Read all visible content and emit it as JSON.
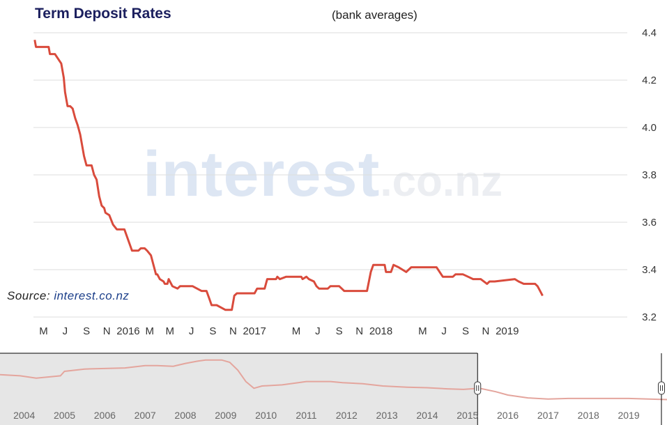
{
  "header": {
    "title": "Term Deposit Rates",
    "subtitle": "(bank averages)"
  },
  "source": {
    "prefix": "Source:",
    "link": "interest.co.nz"
  },
  "watermark": {
    "main": "interest",
    "tail": ".co.nz"
  },
  "colors": {
    "series": "#d94b3c",
    "navigator_series": "#e4a59d",
    "navigator_mask": "#e6e6e6",
    "grid": "#dddddd",
    "title": "#1b1f5e"
  },
  "chart_data": {
    "type": "line",
    "title": "Term Deposit Rates",
    "subtitle": "(bank averages)",
    "ylim": [
      3.2,
      4.4
    ],
    "yticks": [
      3.2,
      3.4,
      3.6,
      3.8,
      4.0,
      4.2,
      4.4
    ],
    "ytick_labels": [
      "3.2",
      "3.4",
      "3.6",
      "3.8",
      "4.0",
      "4.2",
      "4.4"
    ],
    "y_axis_side": "right",
    "grid": true,
    "xlim": [
      2015.25,
      2019.95
    ],
    "xticks": [
      2015.33,
      2015.5,
      2015.67,
      2015.83,
      2016.0,
      2016.17,
      2016.33,
      2016.5,
      2016.67,
      2016.83,
      2017.0,
      2017.33,
      2017.5,
      2017.67,
      2017.83,
      2018.0,
      2018.33,
      2018.5,
      2018.67,
      2018.83,
      2019.0
    ],
    "xtick_labels": [
      "M",
      "J",
      "S",
      "N",
      "2016",
      "M",
      "M",
      "J",
      "S",
      "N",
      "2017",
      "M",
      "J",
      "S",
      "N",
      "2018",
      "M",
      "J",
      "S",
      "N",
      "2019"
    ],
    "series": [
      {
        "x": [
          2015.26,
          2015.27,
          2015.3,
          2015.37,
          2015.38,
          2015.42,
          2015.47,
          2015.49,
          2015.5,
          2015.52,
          2015.54,
          2015.56,
          2015.58,
          2015.6,
          2015.62,
          2015.65,
          2015.67,
          2015.69,
          2015.71,
          2015.73,
          2015.75,
          2015.77,
          2015.79,
          2015.81,
          2015.82,
          2015.85,
          2015.88,
          2015.91,
          2015.97,
          2016.03,
          2016.05,
          2016.08,
          2016.1,
          2016.11,
          2016.13,
          2016.15,
          2016.18,
          2016.2,
          2016.22,
          2016.23,
          2016.25,
          2016.28,
          2016.29,
          2016.31,
          2016.32,
          2016.35,
          2016.39,
          2016.41,
          2016.51,
          2016.58,
          2016.62,
          2016.64,
          2016.66,
          2016.7,
          2016.77,
          2016.82,
          2016.84,
          2016.86,
          2016.89,
          2017.0,
          2017.02,
          2017.08,
          2017.1,
          2017.15,
          2017.17,
          2017.18,
          2017.2,
          2017.25,
          2017.37,
          2017.38,
          2017.41,
          2017.43,
          2017.47,
          2017.49,
          2017.51,
          2017.58,
          2017.6,
          2017.67,
          2017.69,
          2017.71,
          2017.75,
          2017.89,
          2017.92,
          2017.94,
          2017.99,
          2018.03,
          2018.04,
          2018.08,
          2018.1,
          2018.14,
          2018.2,
          2018.24,
          2018.3,
          2018.39,
          2018.41,
          2018.44,
          2018.49,
          2018.57,
          2018.59,
          2018.65,
          2018.69,
          2018.73,
          2018.79,
          2018.84,
          2018.86,
          2018.9,
          2019.06,
          2019.09,
          2019.13,
          2019.22,
          2019.24,
          2019.26,
          2019.28
        ],
        "y": [
          4.37,
          4.34,
          4.34,
          4.34,
          4.31,
          4.31,
          4.27,
          4.21,
          4.15,
          4.09,
          4.09,
          4.08,
          4.04,
          4.01,
          3.97,
          3.88,
          3.84,
          3.84,
          3.84,
          3.8,
          3.78,
          3.71,
          3.67,
          3.66,
          3.64,
          3.63,
          3.59,
          3.57,
          3.57,
          3.48,
          3.48,
          3.48,
          3.49,
          3.49,
          3.49,
          3.48,
          3.46,
          3.42,
          3.38,
          3.38,
          3.36,
          3.35,
          3.34,
          3.34,
          3.36,
          3.33,
          3.32,
          3.33,
          3.33,
          3.31,
          3.31,
          3.28,
          3.25,
          3.25,
          3.23,
          3.23,
          3.29,
          3.3,
          3.3,
          3.3,
          3.32,
          3.32,
          3.36,
          3.36,
          3.36,
          3.37,
          3.36,
          3.37,
          3.37,
          3.36,
          3.37,
          3.36,
          3.35,
          3.33,
          3.32,
          3.32,
          3.33,
          3.33,
          3.32,
          3.31,
          3.31,
          3.31,
          3.39,
          3.42,
          3.42,
          3.42,
          3.39,
          3.39,
          3.42,
          3.41,
          3.39,
          3.41,
          3.41,
          3.41,
          3.41,
          3.41,
          3.37,
          3.37,
          3.38,
          3.38,
          3.37,
          3.36,
          3.36,
          3.34,
          3.35,
          3.35,
          3.36,
          3.35,
          3.34,
          3.34,
          3.33,
          3.31,
          3.29
        ]
      }
    ],
    "navigator": {
      "xlim": [
        2003.4,
        2019.95
      ],
      "xticks": [
        2004,
        2005,
        2006,
        2007,
        2008,
        2009,
        2010,
        2011,
        2012,
        2013,
        2014,
        2015,
        2016,
        2017,
        2018,
        2019
      ],
      "xtick_labels": [
        "2004",
        "2005",
        "2006",
        "2007",
        "2008",
        "2009",
        "2010",
        "2011",
        "2012",
        "2013",
        "2014",
        "2015",
        "2016",
        "2017",
        "2018",
        "2019"
      ],
      "ylim": [
        3.0,
        7.5
      ],
      "selection": [
        2015.25,
        2019.95
      ],
      "x": [
        2003.4,
        2003.9,
        2004.3,
        2004.9,
        2005.0,
        2005.5,
        2006.0,
        2006.5,
        2007.0,
        2007.3,
        2007.7,
        2008.0,
        2008.3,
        2008.5,
        2008.9,
        2009.1,
        2009.3,
        2009.5,
        2009.7,
        2009.9,
        2010.4,
        2010.8,
        2011.0,
        2011.6,
        2011.9,
        2012.4,
        2012.9,
        2013.5,
        2014.0,
        2014.5,
        2014.9,
        2015.3,
        2015.7,
        2016.0,
        2016.5,
        2017.0,
        2017.5,
        2018.0,
        2018.5,
        2019.0,
        2019.5,
        2019.95
      ],
      "y": [
        5.6,
        5.5,
        5.3,
        5.5,
        5.9,
        6.1,
        6.15,
        6.2,
        6.4,
        6.4,
        6.35,
        6.6,
        6.8,
        6.9,
        6.9,
        6.7,
        6.0,
        5.0,
        4.4,
        4.6,
        4.7,
        4.9,
        5.0,
        5.0,
        4.9,
        4.8,
        4.6,
        4.5,
        4.45,
        4.35,
        4.3,
        4.4,
        4.1,
        3.8,
        3.55,
        3.45,
        3.5,
        3.5,
        3.5,
        3.5,
        3.45,
        3.4
      ]
    }
  }
}
